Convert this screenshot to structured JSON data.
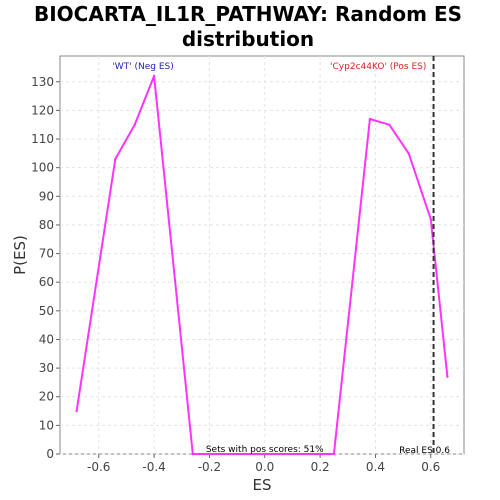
{
  "chart_data": {
    "type": "line",
    "title_line1": "BIOCARTA_IL1R_PATHWAY: Random ES",
    "title_line2": "distribution",
    "xlabel": "ES",
    "ylabel": "P(ES)",
    "xlim": [
      -0.74,
      0.72
    ],
    "ylim": [
      0,
      139
    ],
    "xticks": [
      -0.6,
      -0.4,
      -0.2,
      0.0,
      0.2,
      0.4,
      0.6
    ],
    "xtick_labels": [
      "-0.6",
      "-0.4",
      "-0.2",
      "0.0",
      "0.2",
      "0.4",
      "0.6"
    ],
    "yticks": [
      0,
      10,
      20,
      30,
      40,
      50,
      60,
      70,
      80,
      90,
      100,
      110,
      120,
      130
    ],
    "ytick_labels": [
      "0",
      "10",
      "20",
      "30",
      "40",
      "50",
      "60",
      "70",
      "80",
      "90",
      "100",
      "110",
      "120",
      "130"
    ],
    "grid": true,
    "series": [
      {
        "color": "#ff33ff",
        "x": [
          -0.68,
          -0.54,
          -0.47,
          -0.4,
          -0.26,
          0.25,
          0.38,
          0.45,
          0.52,
          0.6,
          0.66
        ],
        "y": [
          15,
          103,
          115,
          132,
          0,
          0,
          117,
          115,
          105,
          82,
          27
        ]
      }
    ],
    "real_es": 0.61,
    "real_es_color": "#333333",
    "annotations": {
      "neg_label": "'WT' (Neg ES)",
      "neg_color": "#2222bb",
      "pos_label": "'Cyp2c44KO' (Pos ES)",
      "pos_color": "#dd2222",
      "pos_scores_text": "Sets with pos scores: 51%",
      "real_es_text": "Real ES 0.6"
    }
  }
}
